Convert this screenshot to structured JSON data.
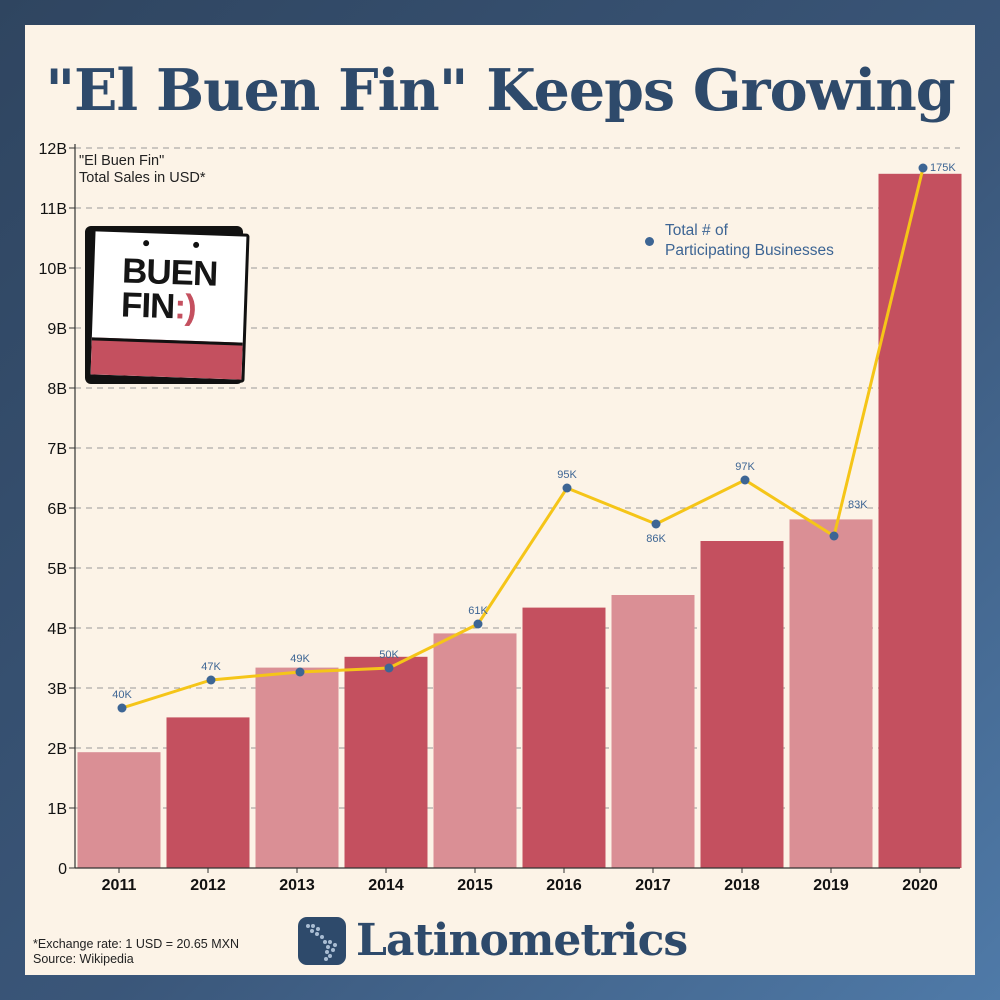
{
  "page": {
    "title": "\"El Buen Fin\" Keeps Growing",
    "footnote_line1": "*Exchange rate: 1 USD = 20.65 MXN",
    "footnote_line2": "Source: Wikipedia",
    "brand": "Latinometrics",
    "logo_line1": "BUEN",
    "logo_line2": "FIN",
    "logo_smile": ":)"
  },
  "colors": {
    "bar_light": "#da8f95",
    "bar_dark": "#c4505f",
    "line": "#f5c518",
    "point": "#3d6594",
    "text_dark": "#2e4a6b",
    "background": "#fcf3e7"
  },
  "chart_data": {
    "type": "bar",
    "title": "\"El Buen Fin\" Keeps Growing",
    "ylabel_lines": [
      "\"El Buen Fin\"",
      "Total Sales in USD*"
    ],
    "categories": [
      "2011",
      "2012",
      "2013",
      "2014",
      "2015",
      "2016",
      "2017",
      "2018",
      "2019",
      "2020"
    ],
    "ylim": [
      0,
      12
    ],
    "y_ticks": [
      0,
      1,
      2,
      3,
      4,
      5,
      6,
      7,
      8,
      9,
      10,
      11,
      12
    ],
    "y_tick_labels": [
      "0",
      "1B",
      "2B",
      "3B",
      "4B",
      "5B",
      "6B",
      "7B",
      "8B",
      "9B",
      "10B",
      "11B",
      "12B"
    ],
    "grid": true,
    "series": [
      {
        "kind": "bar",
        "values": [
          1.93,
          2.51,
          3.34,
          3.52,
          3.91,
          4.34,
          4.55,
          5.45,
          5.81,
          11.57
        ],
        "shades": [
          "light",
          "dark",
          "light",
          "dark",
          "light",
          "dark",
          "light",
          "dark",
          "light",
          "dark"
        ]
      },
      {
        "kind": "line",
        "name_lines": [
          "Total # of",
          "Participating Businesses"
        ],
        "values": [
          40,
          47,
          49,
          50,
          61,
          95,
          86,
          97,
          83,
          175
        ],
        "labels": [
          "40K",
          "47K",
          "49K",
          "50K",
          "61K",
          "95K",
          "86K",
          "97K",
          "83K",
          "175K"
        ]
      }
    ],
    "legend_position": "top-right"
  }
}
